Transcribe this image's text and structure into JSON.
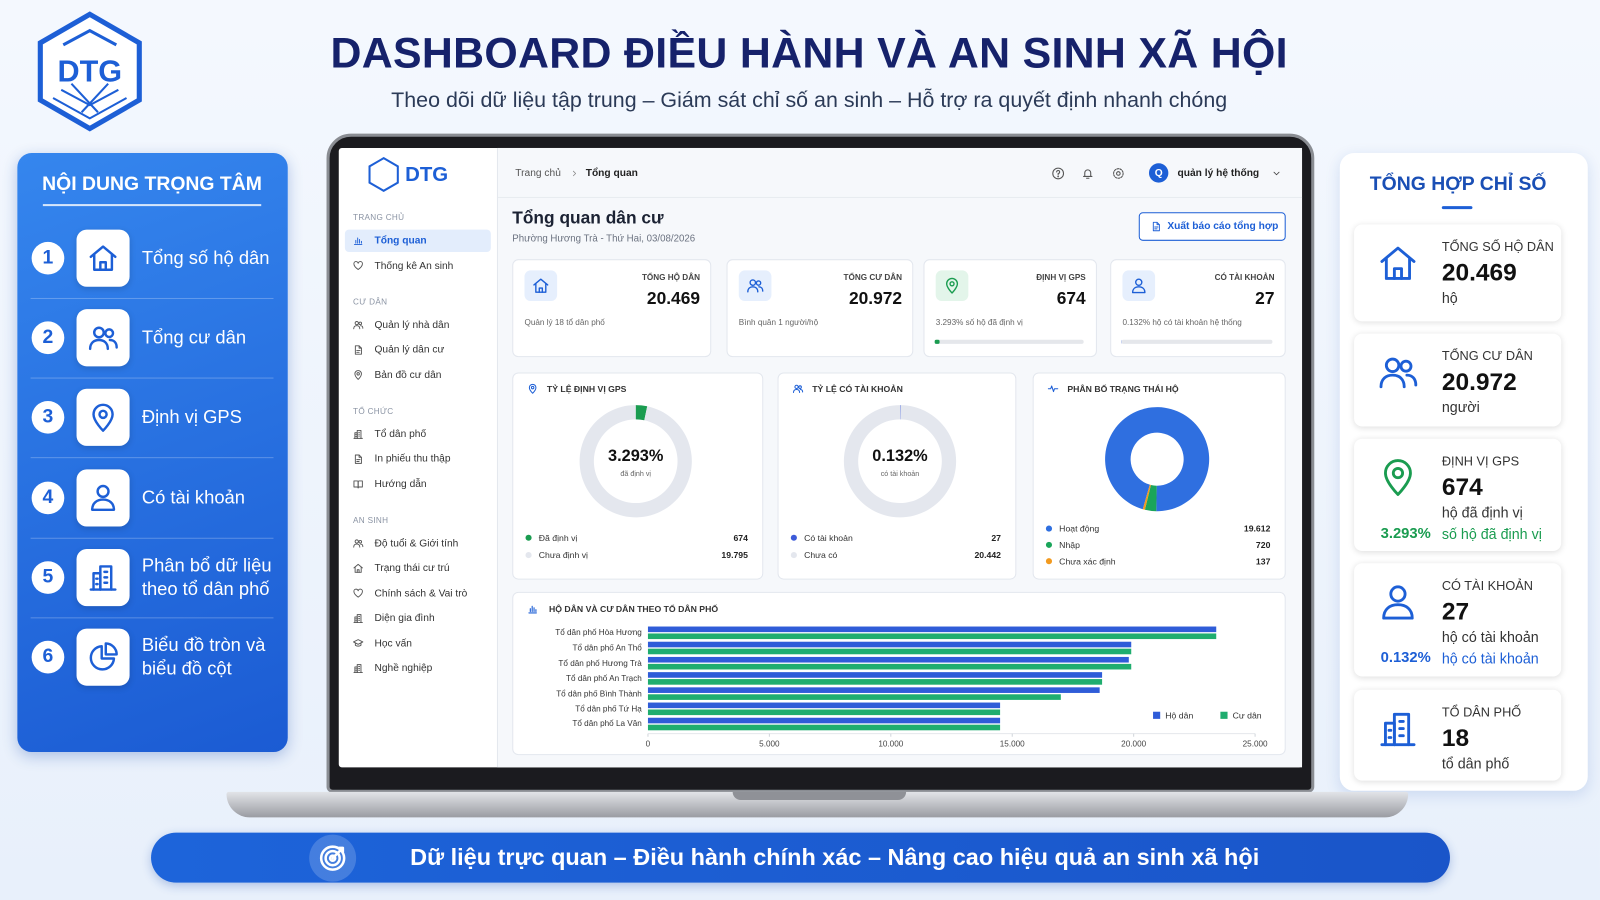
{
  "header": {
    "logo": "DTG",
    "title": "DASHBOARD ĐIỀU HÀNH VÀ AN SINH XÃ HỘI",
    "subtitle": "Theo dõi dữ liệu tập trung – Giám sát chỉ số an sinh – Hỗ trợ ra quyết định nhanh chóng"
  },
  "left_panel": {
    "title": "NỘI DUNG TRỌNG TÂM",
    "items": [
      {
        "number": 1,
        "label": "Tổng số hộ dân"
      },
      {
        "number": 2,
        "label": "Tổng cư dân"
      },
      {
        "number": 3,
        "label": "Định vị GPS"
      },
      {
        "number": 4,
        "label": "Có tài khoản"
      },
      {
        "number": 5,
        "label": "Phân bổ dữ liệu theo tổ dân phố"
      },
      {
        "number": 6,
        "label": "Biểu đồ tròn và biểu đồ cột"
      }
    ]
  },
  "right_panel": {
    "title": "TỔNG HỢP CHỈ SỐ",
    "items": [
      {
        "label": "TỔNG SỐ HỘ DÂN",
        "value": "20.469",
        "unit": "hộ"
      },
      {
        "label": "TỔNG CƯ DÂN",
        "value": "20.972",
        "unit": "người"
      },
      {
        "label": "ĐỊNH VỊ GPS",
        "value": "674",
        "unit": "hộ đã định vị",
        "percent": "3.293%",
        "percent_note": "số hộ đã định vị"
      },
      {
        "label": "CÓ TÀI KHOẢN",
        "value": "27",
        "unit": "hộ có tài khoản",
        "percent": "0.132%",
        "percent_note": "hộ có tài khoản"
      },
      {
        "label": "TỔ DÂN PHỐ",
        "value": "18",
        "unit": "tổ dân phố"
      }
    ]
  },
  "dashboard": {
    "sidebar": {
      "logo": "DTG",
      "sections": [
        {
          "title": "TRANG CHỦ",
          "items": [
            "Tổng quan",
            "Thống kê An sinh"
          ]
        },
        {
          "title": "CƯ DÂN",
          "items": [
            "Quản lý nhà dân",
            "Quản lý dân cư",
            "Bản đồ cư dân"
          ]
        },
        {
          "title": "TỔ CHỨC",
          "items": [
            "Tổ dân phố",
            "In phiếu thu thập",
            "Hướng dẫn"
          ]
        },
        {
          "title": "AN SINH",
          "items": [
            "Độ tuổi & Giới tính",
            "Trạng thái cư trú",
            "Chính sách & Vai trò",
            "Diện gia đình",
            "Học vấn",
            "Nghề nghiệp"
          ]
        }
      ]
    },
    "topbar": {
      "breadcrumb": [
        "Trang chủ",
        "Tổng quan"
      ],
      "avatar": "Q",
      "user": "quản lý hệ thống"
    },
    "page_title": "Tổng quan dân cư",
    "page_subtitle": "Phường Hương Trà - Thứ Hai, 03/08/2026",
    "export_button": "Xuất báo cáo tổng hợp",
    "kpis": [
      {
        "label": "TỔNG HỘ DÂN",
        "value": "20.469",
        "note": "Quản lý 18 tổ dân phố"
      },
      {
        "label": "TỔNG CƯ DÂN",
        "value": "20.972",
        "note": "Bình quân 1 người/hộ"
      },
      {
        "label": "ĐỊNH VỊ GPS",
        "value": "674",
        "note": "3.293% số hộ đã định vị",
        "progress": 3.293,
        "color": "#1a9c50"
      },
      {
        "label": "CÓ TÀI KHOẢN",
        "value": "27",
        "note": "0.132% hộ có tài khoản hệ thống",
        "progress": 0.132,
        "color": "#2f5cd8"
      }
    ],
    "donuts": [
      {
        "type": "pie",
        "title": "TỶ LỆ ĐỊNH VỊ GPS",
        "center_label": "3.293%",
        "center_caption": "đã định vị",
        "categories": [
          "Đã định vị",
          "Chưa định vị"
        ],
        "values": [
          674,
          19795
        ],
        "value_labels": [
          "674",
          "19.795"
        ],
        "colors": [
          "#1a9c50",
          "#e4e7ee"
        ],
        "startangle": 0
      },
      {
        "type": "pie",
        "title": "TỶ LỆ CÓ TÀI KHOẢN",
        "center_label": "0.132%",
        "center_caption": "có tài khoản",
        "categories": [
          "Có tài khoản",
          "Chưa có"
        ],
        "values": [
          27,
          20442
        ],
        "value_labels": [
          "27",
          "20.442"
        ],
        "colors": [
          "#3d5bd9",
          "#e4e7ee"
        ],
        "startangle": 0
      },
      {
        "type": "pie",
        "title": "PHÂN BỐ TRẠNG THÁI HỘ",
        "categories": [
          "Hoạt động",
          "Nhập",
          "Chưa xác định"
        ],
        "values": [
          19612,
          720,
          137
        ],
        "value_labels": [
          "19.612",
          "720",
          "137"
        ],
        "colors": [
          "#2f6fe0",
          "#1aa55a",
          "#f29a1f"
        ],
        "startangle": 196
      }
    ],
    "bar_chart": {
      "type": "bar",
      "orientation": "horizontal",
      "title": "HỘ DÂN VÀ CƯ DÂN THEO TỔ DÂN PHỐ",
      "categories": [
        "Tổ dân phố Hòa Hương",
        "Tổ dân phố An Thổ",
        "Tổ dân phố Hương Trà",
        "Tổ dân phố An Trạch",
        "Tổ dân phố Bình Thành",
        "Tổ dân phố Tứ Hạ",
        "Tổ dân phố La Vân"
      ],
      "series": [
        {
          "name": "Hộ dân",
          "color": "#2f5cd8",
          "values": [
            23400,
            19900,
            19800,
            18700,
            18600,
            14500,
            14500
          ]
        },
        {
          "name": "Cư dân",
          "color": "#1fad6f",
          "values": [
            23400,
            19900,
            19900,
            18700,
            17000,
            14500,
            14500
          ]
        }
      ],
      "xlim": [
        0,
        25000
      ],
      "xticks": [
        0,
        {
          "value": 5000,
          "label": "5.000"
        },
        {
          "value": 10000,
          "label": "10.000"
        },
        {
          "value": 15000,
          "label": "15.000"
        },
        {
          "value": 20000,
          "label": "20.000"
        },
        {
          "value": 25000,
          "label": "25.000"
        }
      ],
      "legend": "bottom-right"
    }
  },
  "footer": {
    "text": "Dữ liệu trực quan – Điều hành chính xác – Nâng cao hiệu quả an sinh xã hội"
  }
}
